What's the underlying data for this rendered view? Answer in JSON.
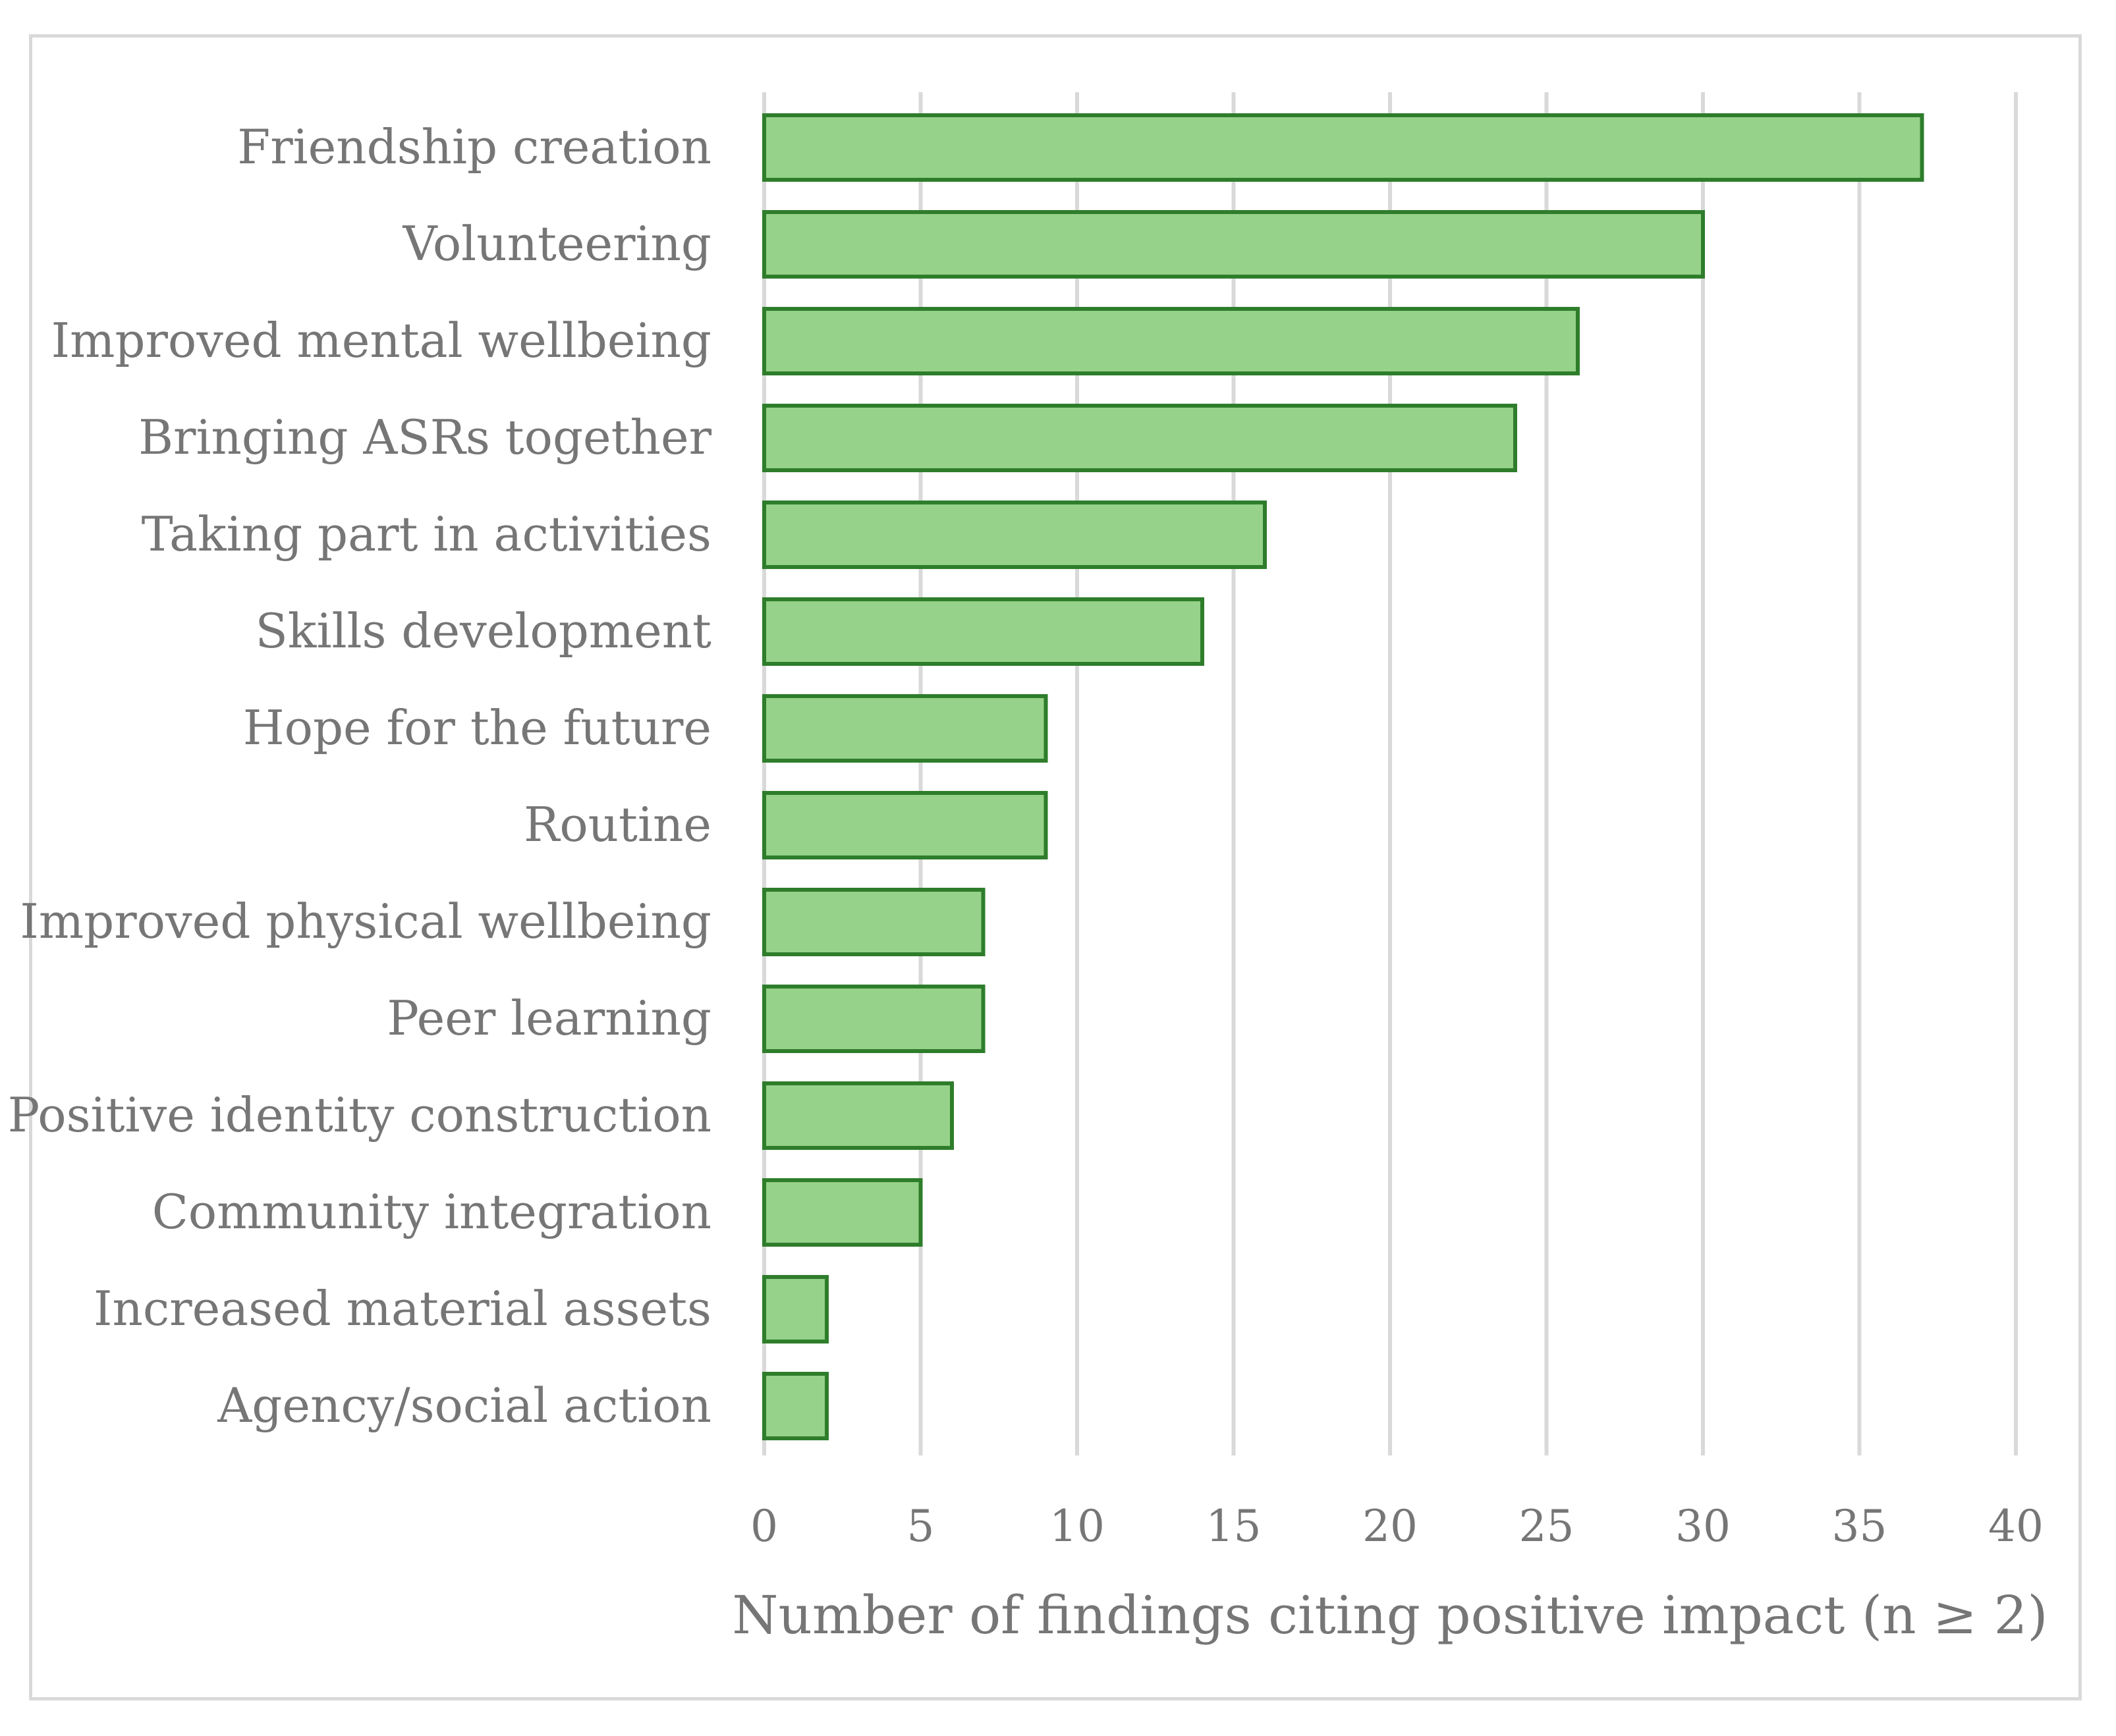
{
  "chart_data": {
    "type": "bar",
    "orientation": "horizontal",
    "title": "",
    "xlabel": "Number of findings citing positive impact (n ≥ 2)",
    "ylabel": "",
    "xlim": [
      0,
      40
    ],
    "xticks": [
      0,
      5,
      10,
      15,
      20,
      25,
      30,
      35,
      40
    ],
    "grid": true,
    "categories": [
      "Friendship creation",
      "Volunteering",
      "Improved mental wellbeing",
      "Bringing ASRs together",
      "Taking part in activities",
      "Skills development",
      "Hope for the future",
      "Routine",
      "Improved physical wellbeing",
      "Peer learning",
      "Positive identity construction",
      "Community integration",
      "Increased material assets",
      "Agency/social action"
    ],
    "values": [
      37,
      30,
      26,
      24,
      16,
      14,
      9,
      9,
      7,
      7,
      6,
      5,
      2,
      2
    ],
    "colors": {
      "bar_fill": "#96d28a",
      "bar_stroke": "#2e7d2b",
      "grid": "#d9d9d9",
      "text": "#767676"
    }
  }
}
